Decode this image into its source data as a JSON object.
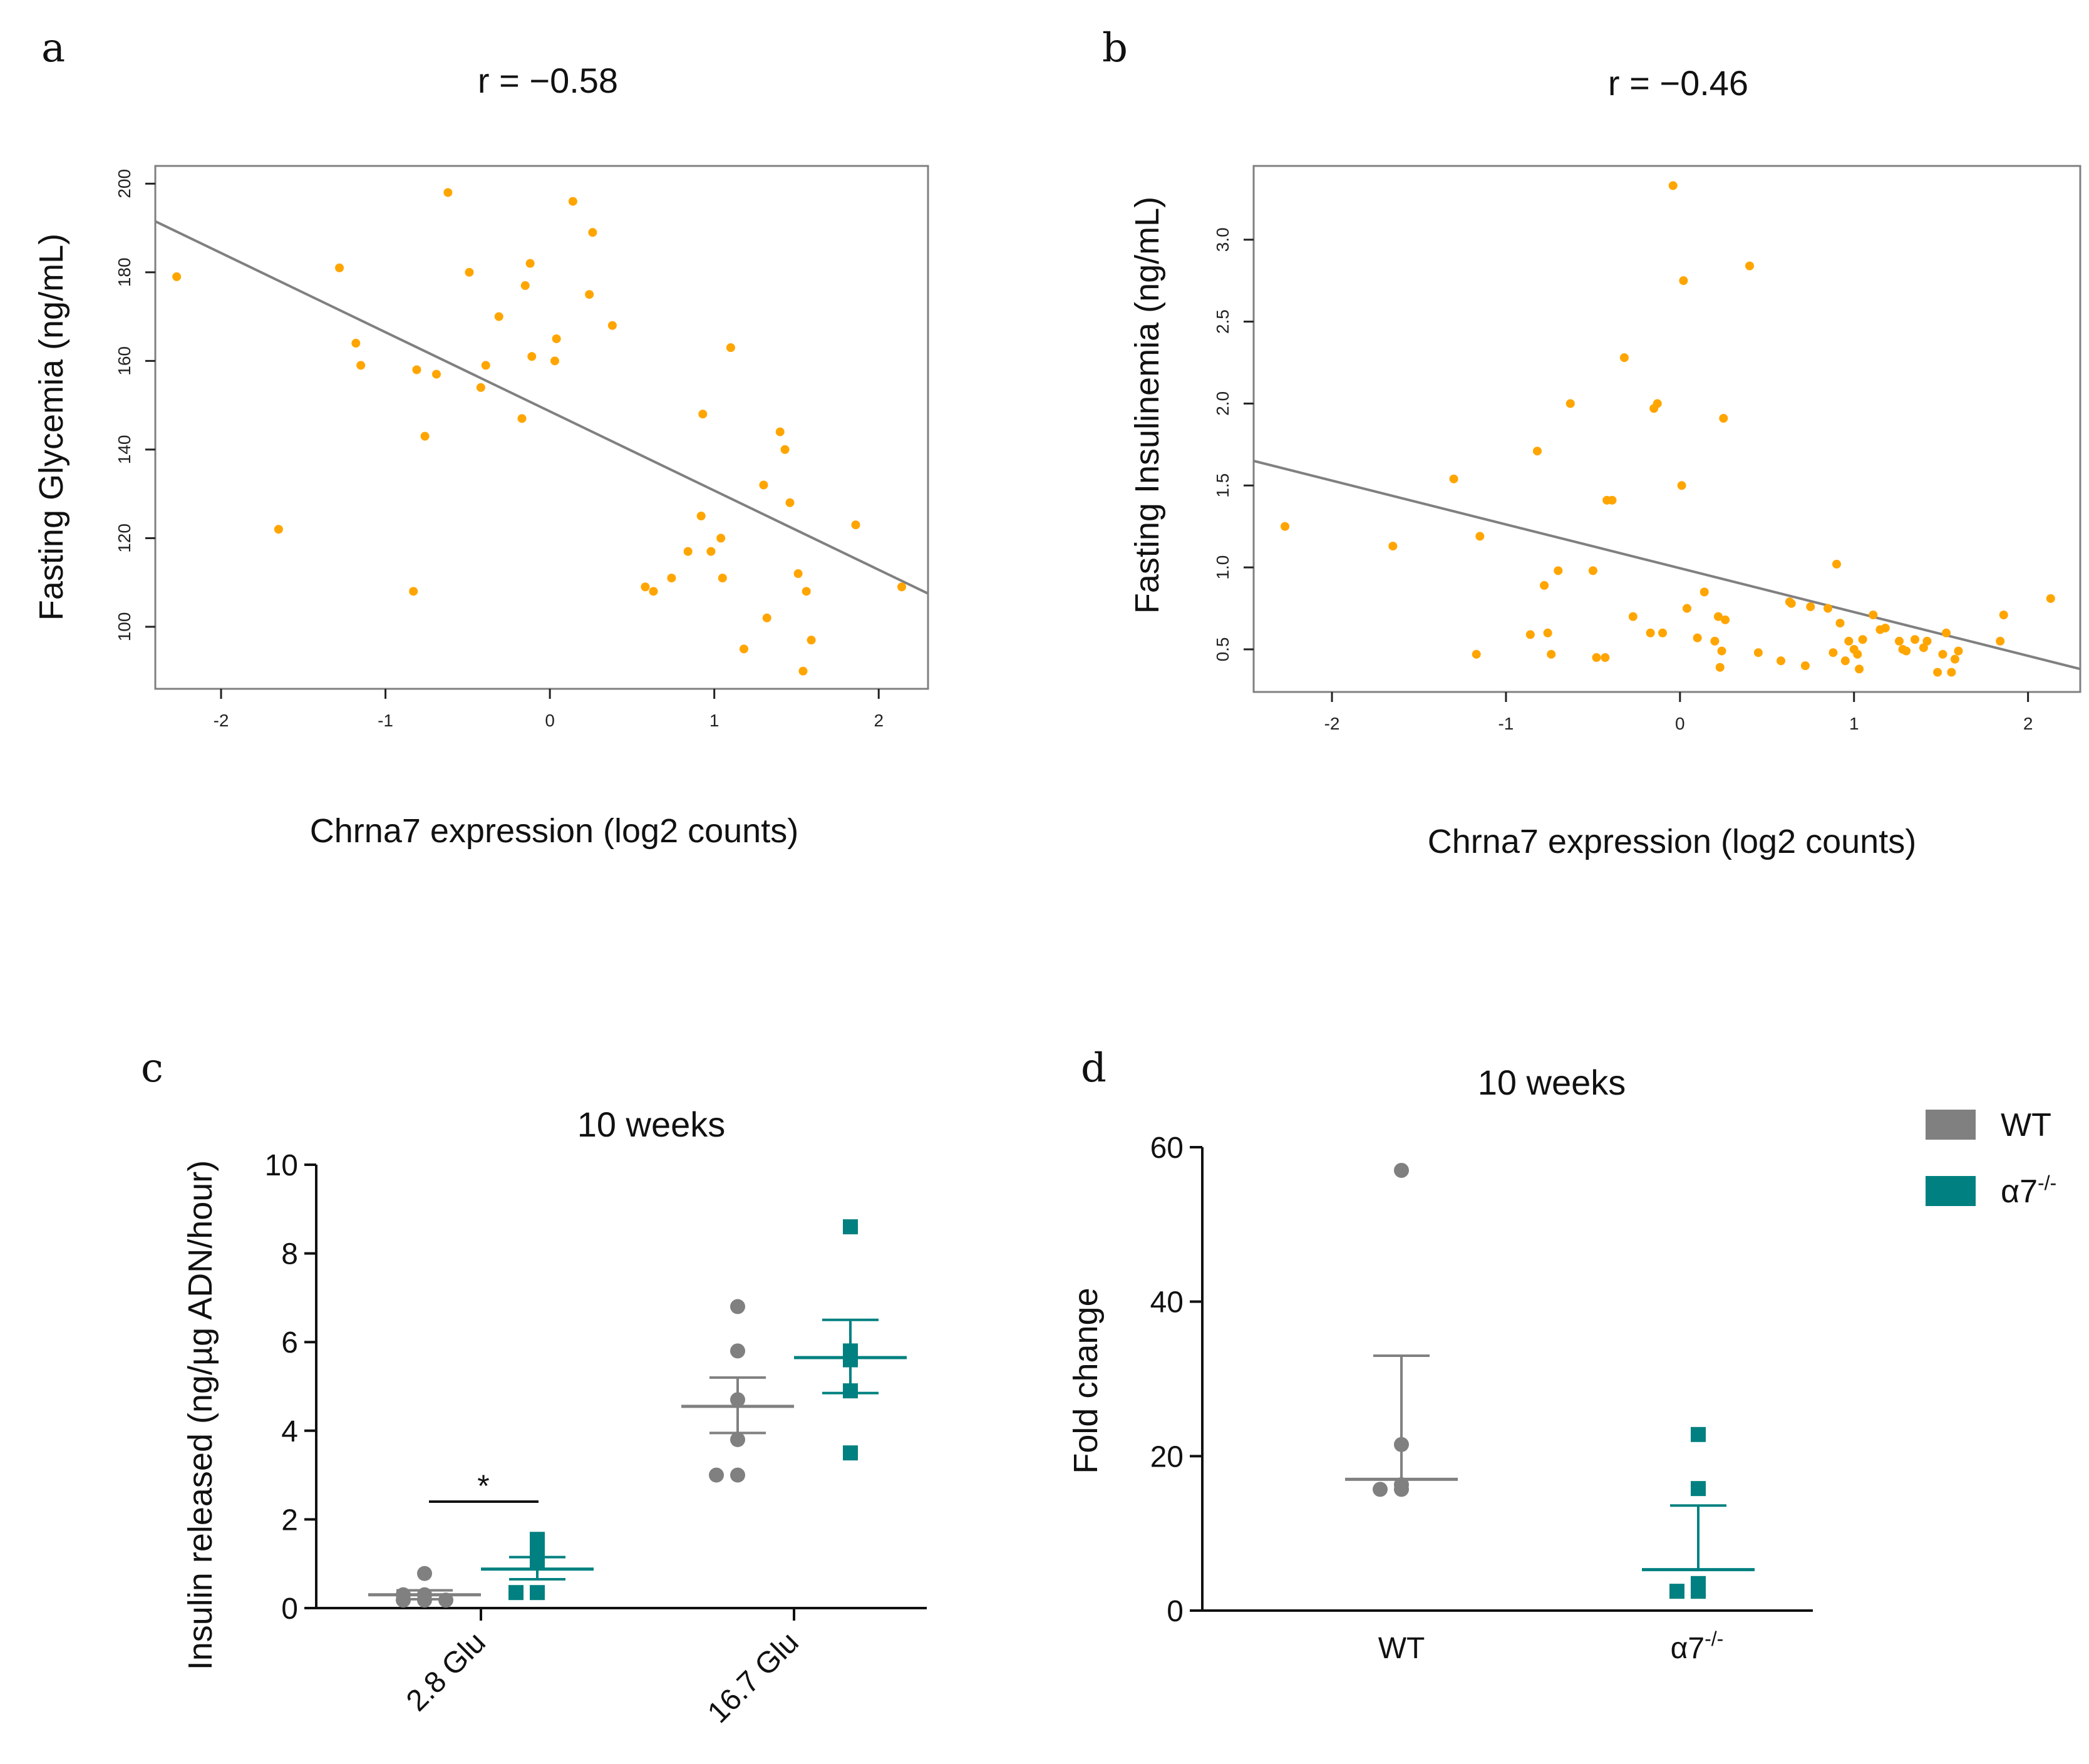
{
  "colors": {
    "orange": "#FFA500",
    "regression": "#808080",
    "wt": "#808080",
    "ko": "#008080",
    "axis": "#222222"
  },
  "chart_data": [
    {
      "panel": "a",
      "type": "scatter",
      "title": "r = −0.58",
      "xlabel": "Chrna7 expression (log2 counts)",
      "ylabel": "Fasting Glycemia (ng/mL)",
      "xlim": [
        -2.4,
        2.3
      ],
      "ylim": [
        86,
        204
      ],
      "xticks": [
        -2,
        -1,
        0,
        1,
        2
      ],
      "xtick_labels": [
        "-2",
        "-1",
        "0",
        "1",
        "2"
      ],
      "yticks": [
        100,
        120,
        140,
        160,
        180,
        200
      ],
      "ytick_labels": [
        "100",
        "120",
        "140",
        "160",
        "180",
        "200"
      ],
      "regression": [
        [
          -2.4,
          191.5
        ],
        [
          2.3,
          107.5
        ]
      ],
      "points": [
        [
          -2.27,
          179
        ],
        [
          -1.65,
          122
        ],
        [
          -1.28,
          181
        ],
        [
          -1.18,
          164
        ],
        [
          -1.15,
          159
        ],
        [
          -0.83,
          108
        ],
        [
          -0.81,
          158
        ],
        [
          -0.76,
          143
        ],
        [
          -0.69,
          157
        ],
        [
          -0.62,
          198
        ],
        [
          -0.49,
          180
        ],
        [
          -0.42,
          154
        ],
        [
          -0.39,
          159
        ],
        [
          -0.31,
          170
        ],
        [
          -0.17,
          147
        ],
        [
          -0.15,
          177
        ],
        [
          -0.12,
          182
        ],
        [
          -0.11,
          161
        ],
        [
          0.03,
          160
        ],
        [
          0.04,
          165
        ],
        [
          0.14,
          196
        ],
        [
          0.24,
          175
        ],
        [
          0.26,
          189
        ],
        [
          0.38,
          168
        ],
        [
          0.58,
          109
        ],
        [
          0.63,
          108
        ],
        [
          0.74,
          111
        ],
        [
          0.84,
          117
        ],
        [
          0.92,
          125
        ],
        [
          0.93,
          148
        ],
        [
          0.98,
          117
        ],
        [
          1.04,
          120
        ],
        [
          1.05,
          111
        ],
        [
          1.1,
          163
        ],
        [
          1.18,
          95
        ],
        [
          1.3,
          132
        ],
        [
          1.32,
          102
        ],
        [
          1.4,
          144
        ],
        [
          1.43,
          140
        ],
        [
          1.46,
          128
        ],
        [
          1.51,
          112
        ],
        [
          1.54,
          90
        ],
        [
          1.56,
          108
        ],
        [
          1.59,
          97
        ],
        [
          1.86,
          123
        ],
        [
          2.14,
          109
        ]
      ]
    },
    {
      "panel": "b",
      "type": "scatter",
      "title": "r = −0.46",
      "xlabel": "Chrna7 expression (log2 counts)",
      "ylabel": "Fasting Insulinemia (ng/mL)",
      "xlim": [
        -2.45,
        2.3
      ],
      "ylim": [
        0.24,
        3.45
      ],
      "xticks": [
        -2,
        -1,
        0,
        1,
        2
      ],
      "xtick_labels": [
        "-2",
        "-1",
        "0",
        "1",
        "2"
      ],
      "yticks": [
        0.5,
        1.0,
        1.5,
        2.0,
        2.5,
        3.0
      ],
      "ytick_labels": [
        "0.5",
        "1.0",
        "1.5",
        "2.0",
        "2.5",
        "3.0"
      ],
      "regression": [
        [
          -2.45,
          1.65
        ],
        [
          2.3,
          0.38
        ]
      ],
      "points": [
        [
          -2.27,
          1.25
        ],
        [
          -1.65,
          1.13
        ],
        [
          -1.3,
          1.54
        ],
        [
          -1.17,
          0.47
        ],
        [
          -1.15,
          1.19
        ],
        [
          -0.86,
          0.59
        ],
        [
          -0.82,
          1.71
        ],
        [
          -0.78,
          0.89
        ],
        [
          -0.76,
          0.6
        ],
        [
          -0.74,
          0.47
        ],
        [
          -0.7,
          0.98
        ],
        [
          -0.63,
          2.0
        ],
        [
          -0.5,
          0.98
        ],
        [
          -0.48,
          0.45
        ],
        [
          -0.43,
          0.45
        ],
        [
          -0.42,
          1.41
        ],
        [
          -0.39,
          1.41
        ],
        [
          -0.32,
          2.28
        ],
        [
          -0.27,
          0.7
        ],
        [
          -0.17,
          0.6
        ],
        [
          -0.15,
          1.97
        ],
        [
          -0.13,
          2.0
        ],
        [
          -0.1,
          0.6
        ],
        [
          -0.04,
          3.33
        ],
        [
          0.01,
          1.5
        ],
        [
          0.02,
          2.75
        ],
        [
          0.04,
          0.75
        ],
        [
          0.1,
          0.57
        ],
        [
          0.14,
          0.85
        ],
        [
          0.2,
          0.55
        ],
        [
          0.22,
          0.7
        ],
        [
          0.23,
          0.39
        ],
        [
          0.24,
          0.49
        ],
        [
          0.25,
          1.91
        ],
        [
          0.26,
          0.68
        ],
        [
          0.4,
          2.84
        ],
        [
          0.45,
          0.48
        ],
        [
          0.58,
          0.43
        ],
        [
          0.63,
          0.79
        ],
        [
          0.64,
          0.78
        ],
        [
          0.72,
          0.4
        ],
        [
          0.75,
          0.76
        ],
        [
          0.85,
          0.75
        ],
        [
          0.88,
          0.48
        ],
        [
          0.9,
          1.02
        ],
        [
          0.92,
          0.66
        ],
        [
          0.95,
          0.43
        ],
        [
          0.97,
          0.55
        ],
        [
          1.0,
          0.5
        ],
        [
          1.02,
          0.47
        ],
        [
          1.03,
          0.38
        ],
        [
          1.05,
          0.56
        ],
        [
          1.11,
          0.71
        ],
        [
          1.15,
          0.62
        ],
        [
          1.18,
          0.63
        ],
        [
          1.26,
          0.55
        ],
        [
          1.28,
          0.5
        ],
        [
          1.3,
          0.49
        ],
        [
          1.35,
          0.56
        ],
        [
          1.4,
          0.51
        ],
        [
          1.42,
          0.55
        ],
        [
          1.48,
          0.36
        ],
        [
          1.51,
          0.47
        ],
        [
          1.53,
          0.6
        ],
        [
          1.56,
          0.36
        ],
        [
          1.58,
          0.44
        ],
        [
          1.6,
          0.49
        ],
        [
          1.84,
          0.55
        ],
        [
          1.86,
          0.71
        ],
        [
          2.13,
          0.81
        ]
      ]
    },
    {
      "panel": "c",
      "type": "scatter",
      "title": "10 weeks",
      "xlabel": "",
      "ylabel": "Insulin released (ng/µg ADN/hour)",
      "ylim": [
        0,
        10
      ],
      "yticks": [
        0,
        2,
        4,
        6,
        8,
        10
      ],
      "ytick_labels": [
        "0",
        "2",
        "4",
        "6",
        "8",
        "10"
      ],
      "categories": [
        "2.8 Glu",
        "16.7 Glu"
      ],
      "significance": "*",
      "series": [
        {
          "name": "WT",
          "groups": [
            {
              "mean": 0.3,
              "sem_low": 0.2,
              "sem_high": 0.4,
              "points": [
                0.3,
                0.3,
                0.18,
                0.18,
                0.18,
                0.78
              ]
            },
            {
              "mean": 4.55,
              "sem_low": 3.95,
              "sem_high": 5.2,
              "points": [
                6.8,
                5.8,
                4.7,
                3.8,
                3.0,
                3.0
              ]
            }
          ]
        },
        {
          "name": "α7-/-",
          "groups": [
            {
              "mean": 0.88,
              "sem_low": 0.65,
              "sem_high": 1.15,
              "points": [
                1.55,
                1.3,
                1.05,
                0.35,
                0.35
              ]
            },
            {
              "mean": 5.65,
              "sem_low": 4.85,
              "sem_high": 6.5,
              "points": [
                8.6,
                5.8,
                5.6,
                4.9,
                3.5
              ]
            }
          ]
        }
      ]
    },
    {
      "panel": "d",
      "type": "scatter",
      "title": "10 weeks",
      "xlabel": "",
      "ylabel": "Fold change",
      "ylim": [
        0,
        60
      ],
      "yticks": [
        0,
        20,
        40,
        60
      ],
      "ytick_labels": [
        "0",
        "20",
        "40",
        "60"
      ],
      "categories": [
        "WT",
        "α7-/-"
      ],
      "legend": [
        "WT",
        "α7-/-"
      ],
      "series": [
        {
          "name": "WT",
          "mean": 17.0,
          "sem_low": 17.0,
          "sem_high": 33.0,
          "points": [
            57.0,
            21.5,
            16.3,
            15.7,
            15.7
          ]
        },
        {
          "name": "α7-/-",
          "mean": 5.3,
          "sem_low": 5.3,
          "sem_high": 13.6,
          "points": [
            22.8,
            15.8,
            3.5,
            2.5,
            2.5
          ]
        }
      ]
    }
  ],
  "labels": {
    "panel_a": "a",
    "panel_b": "b",
    "panel_c": "c",
    "panel_d": "d",
    "sup_ko": "-/-",
    "alpha7": "α7",
    "wt": "WT"
  }
}
